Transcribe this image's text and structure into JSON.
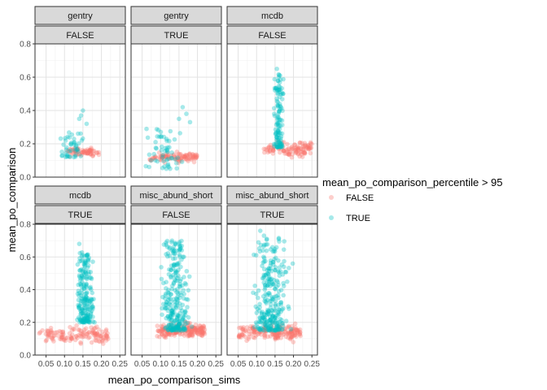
{
  "chart_data": {
    "type": "scatter",
    "xlabel": "mean_po_comparison_sims",
    "ylabel": "mean_po_comparison",
    "xlim": [
      0.02,
      0.265
    ],
    "ylim": [
      0,
      0.8
    ],
    "x_ticks": [
      "0.05",
      "0.10",
      "0.15",
      "0.20",
      "0.25"
    ],
    "y_ticks": [
      "0.0",
      "0.2",
      "0.4",
      "0.6",
      "0.8"
    ],
    "grid": true,
    "legend": {
      "title": "mean_po_comparison_percentile > 95",
      "position": "right",
      "entries": [
        {
          "label": "FALSE",
          "color": "#F8766D"
        },
        {
          "label": "TRUE",
          "color": "#00BFC4"
        }
      ]
    },
    "panels": [
      {
        "strip1": "gentry",
        "strip2": "FALSE",
        "false_cluster": {
          "x": [
            0.1,
            0.195
          ],
          "y_center": 0.15,
          "y_spread": 0.035,
          "n": 70
        },
        "true_cluster": {
          "x": [
            0.07,
            0.17
          ],
          "y_low": 0.12,
          "y_high": 0.27,
          "n": 45,
          "outliers": [
            [
              0.14,
              0.35
            ],
            [
              0.145,
              0.37
            ],
            [
              0.15,
              0.4
            ],
            [
              0.16,
              0.32
            ]
          ]
        }
      },
      {
        "strip1": "gentry",
        "strip2": "TRUE",
        "false_cluster": {
          "x": [
            0.07,
            0.2
          ],
          "y_center": 0.12,
          "y_spread": 0.04,
          "n": 95
        },
        "true_cluster": {
          "x": [
            0.04,
            0.18
          ],
          "y_low": 0.05,
          "y_high": 0.3,
          "n": 55,
          "outliers": [
            [
              0.16,
              0.42
            ],
            [
              0.17,
              0.38
            ],
            [
              0.15,
              0.35
            ],
            [
              0.18,
              0.33
            ]
          ]
        }
      },
      {
        "strip1": "mcdb",
        "strip2": "FALSE",
        "false_cluster": {
          "x": [
            0.11,
            0.25
          ],
          "y_center": 0.17,
          "y_spread": 0.06,
          "n": 110
        },
        "true_cluster": {
          "x": [
            0.14,
            0.18
          ],
          "y_low": 0.18,
          "y_high": 0.62,
          "n": 120,
          "outliers": [
            [
              0.155,
              0.65
            ],
            [
              0.16,
              0.6
            ]
          ]
        }
      },
      {
        "strip1": "mcdb",
        "strip2": "TRUE",
        "false_cluster": {
          "x": [
            0.03,
            0.22
          ],
          "y_center": 0.12,
          "y_spread": 0.07,
          "n": 130
        },
        "true_cluster": {
          "x": [
            0.12,
            0.19
          ],
          "y_low": 0.2,
          "y_high": 0.63,
          "n": 200,
          "outliers": [
            [
              0.14,
              0.68
            ]
          ]
        }
      },
      {
        "strip1": "misc_abund_short",
        "strip2": "FALSE",
        "false_cluster": {
          "x": [
            0.09,
            0.22
          ],
          "y_center": 0.15,
          "y_spread": 0.06,
          "n": 180
        },
        "true_cluster": {
          "x": [
            0.08,
            0.2
          ],
          "y_low": 0.15,
          "y_high": 0.7,
          "n": 260,
          "outliers": [
            [
              0.13,
              0.69
            ],
            [
              0.14,
              0.68
            ]
          ]
        }
      },
      {
        "strip1": "misc_abund_short",
        "strip2": "TRUE",
        "false_cluster": {
          "x": [
            0.05,
            0.22
          ],
          "y_center": 0.14,
          "y_spread": 0.07,
          "n": 180
        },
        "true_cluster": {
          "x": [
            0.07,
            0.21
          ],
          "y_low": 0.15,
          "y_high": 0.72,
          "n": 280,
          "outliers": [
            [
              0.11,
              0.76
            ],
            [
              0.12,
              0.73
            ]
          ]
        }
      }
    ]
  }
}
